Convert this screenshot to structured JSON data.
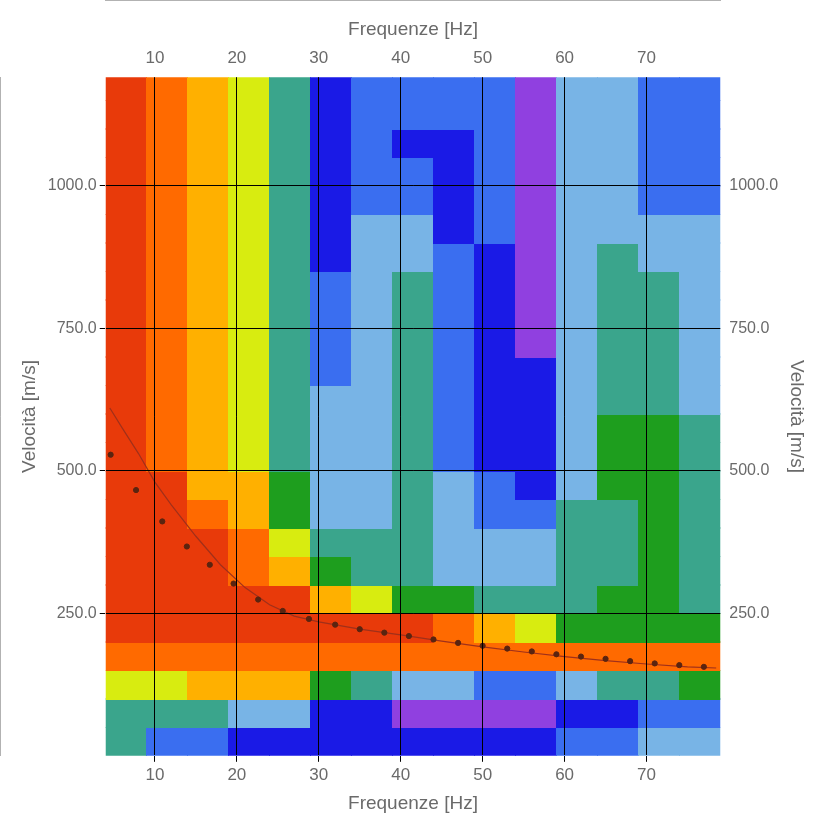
{
  "chart_data": {
    "type": "heatmap",
    "x_label": "Frequenze [Hz]",
    "y_label": "Velocità [m/s]",
    "xlim": [
      4,
      79
    ],
    "xticks": [
      10,
      20,
      30,
      40,
      50,
      60,
      70
    ],
    "ylim": [
      0,
      1190
    ],
    "yticks": [
      {
        "value": 250,
        "label": "250.0"
      },
      {
        "value": 500,
        "label": "500.0"
      },
      {
        "value": 750,
        "label": "750.0"
      },
      {
        "value": 1000,
        "label": "1000.0"
      }
    ],
    "grid": true,
    "heatmap": {
      "x_edges": [
        4,
        9,
        14,
        19,
        24,
        29,
        34,
        39,
        44,
        49,
        54,
        59,
        64,
        69,
        74,
        79
      ],
      "y_edges": [
        0,
        50,
        100,
        150,
        200,
        250,
        300,
        350,
        400,
        450,
        500,
        550,
        600,
        650,
        700,
        750,
        800,
        850,
        900,
        950,
        1000,
        1050,
        1100,
        1150,
        1200
      ],
      "zlim": [
        0,
        1
      ],
      "z": [
        [
          0.5,
          0.3,
          0.25,
          0.2,
          0.2,
          0.2,
          0.2,
          0.2,
          0.2,
          0.2,
          0.2,
          0.25,
          0.3,
          0.35,
          0.35
        ],
        [
          0.5,
          0.5,
          0.45,
          0.4,
          0.35,
          0.2,
          0.15,
          0.1,
          0.1,
          0.05,
          0.05,
          0.15,
          0.2,
          0.25,
          0.3
        ],
        [
          0.7,
          0.7,
          0.75,
          0.8,
          0.75,
          0.6,
          0.5,
          0.4,
          0.35,
          0.3,
          0.25,
          0.35,
          0.45,
          0.5,
          0.55
        ],
        [
          0.9,
          0.9,
          0.9,
          0.9,
          0.9,
          0.9,
          0.9,
          0.9,
          0.85,
          0.9,
          0.9,
          0.9,
          0.9,
          0.9,
          0.9
        ],
        [
          0.95,
          0.95,
          1,
          1,
          1,
          1,
          1,
          0.95,
          0.9,
          0.8,
          0.7,
          0.6,
          0.6,
          0.6,
          0.6
        ],
        [
          0.95,
          0.95,
          1,
          1,
          0.95,
          0.8,
          0.7,
          0.6,
          0.55,
          0.5,
          0.45,
          0.5,
          0.55,
          0.6,
          0.5
        ],
        [
          0.95,
          0.95,
          1,
          0.9,
          0.8,
          0.6,
          0.5,
          0.5,
          0.4,
          0.4,
          0.4,
          0.45,
          0.5,
          0.55,
          0.45
        ],
        [
          0.95,
          0.95,
          0.95,
          0.85,
          0.7,
          0.45,
          0.45,
          0.5,
          0.4,
          0.4,
          0.35,
          0.45,
          0.5,
          0.55,
          0.45
        ],
        [
          0.95,
          0.95,
          0.9,
          0.8,
          0.6,
          0.4,
          0.4,
          0.5,
          0.4,
          0.3,
          0.3,
          0.45,
          0.5,
          0.55,
          0.45
        ],
        [
          0.95,
          0.95,
          0.8,
          0.75,
          0.55,
          0.35,
          0.4,
          0.5,
          0.35,
          0.25,
          0.2,
          0.4,
          0.55,
          0.55,
          0.45
        ],
        [
          0.95,
          0.9,
          0.8,
          0.7,
          0.5,
          0.35,
          0.4,
          0.5,
          0.3,
          0.2,
          0.2,
          0.4,
          0.55,
          0.6,
          0.45
        ],
        [
          0.95,
          0.9,
          0.8,
          0.7,
          0.5,
          0.35,
          0.4,
          0.5,
          0.3,
          0.2,
          0.2,
          0.4,
          0.55,
          0.55,
          0.45
        ],
        [
          0.95,
          0.9,
          0.8,
          0.7,
          0.5,
          0.35,
          0.4,
          0.5,
          0.3,
          0.2,
          0.15,
          0.4,
          0.5,
          0.5,
          0.4
        ],
        [
          0.95,
          0.9,
          0.8,
          0.7,
          0.5,
          0.3,
          0.4,
          0.5,
          0.3,
          0.2,
          0.15,
          0.4,
          0.5,
          0.5,
          0.4
        ],
        [
          0.95,
          0.9,
          0.8,
          0.7,
          0.5,
          0.3,
          0.35,
          0.5,
          0.3,
          0.15,
          0.1,
          0.4,
          0.5,
          0.45,
          0.4
        ],
        [
          0.95,
          0.9,
          0.8,
          0.7,
          0.5,
          0.3,
          0.35,
          0.45,
          0.3,
          0.15,
          0.1,
          0.4,
          0.45,
          0.45,
          0.4
        ],
        [
          0.95,
          0.9,
          0.8,
          0.7,
          0.45,
          0.25,
          0.35,
          0.45,
          0.3,
          0.2,
          0.1,
          0.4,
          0.45,
          0.45,
          0.35
        ],
        [
          0.95,
          0.9,
          0.8,
          0.7,
          0.45,
          0.2,
          0.35,
          0.4,
          0.25,
          0.2,
          0.1,
          0.4,
          0.45,
          0.4,
          0.35
        ],
        [
          0.95,
          0.9,
          0.8,
          0.7,
          0.45,
          0.2,
          0.35,
          0.4,
          0.2,
          0.25,
          0.1,
          0.4,
          0.4,
          0.35,
          0.35
        ],
        [
          0.95,
          0.9,
          0.8,
          0.7,
          0.45,
          0.2,
          0.3,
          0.3,
          0.2,
          0.3,
          0.05,
          0.4,
          0.4,
          0.3,
          0.3
        ],
        [
          0.95,
          0.9,
          0.8,
          0.65,
          0.45,
          0.2,
          0.3,
          0.25,
          0.2,
          0.3,
          0.05,
          0.4,
          0.4,
          0.3,
          0.3
        ],
        [
          0.95,
          0.9,
          0.8,
          0.65,
          0.45,
          0.2,
          0.3,
          0.2,
          0.2,
          0.3,
          0.05,
          0.4,
          0.4,
          0.3,
          0.3
        ],
        [
          0.95,
          0.9,
          0.8,
          0.65,
          0.45,
          0.2,
          0.3,
          0.25,
          0.3,
          0.3,
          0.05,
          0.4,
          0.4,
          0.3,
          0.3
        ],
        [
          0.95,
          0.9,
          0.8,
          0.65,
          0.45,
          0.2,
          0.3,
          0.3,
          0.3,
          0.3,
          0.1,
          0.4,
          0.4,
          0.3,
          0.3
        ]
      ]
    },
    "series": [
      {
        "type": "scatter",
        "marker": "circle",
        "color": "#5a2410",
        "x": [
          4.6,
          7.7,
          10.9,
          13.9,
          16.7,
          19.6,
          22.6,
          25.6,
          28.8,
          32,
          35,
          38,
          41,
          44,
          47,
          50,
          53,
          56,
          59,
          62,
          65,
          68,
          71,
          74,
          77
        ],
        "values": [
          528,
          466,
          411,
          367,
          335,
          302,
          274,
          254,
          240,
          230,
          222,
          216,
          210,
          204,
          198,
          193,
          188,
          183,
          178,
          174,
          170,
          166,
          162,
          159,
          156
        ]
      },
      {
        "type": "line",
        "line_style": "solid",
        "color": "#a0301a",
        "x": [
          4.5,
          6,
          8,
          10,
          12,
          15,
          18,
          21,
          24,
          27,
          30,
          35,
          40,
          45,
          50,
          55,
          60,
          65,
          70,
          75,
          78.5
        ],
        "values": [
          610,
          575,
          530,
          480,
          440,
          385,
          335,
          295,
          265,
          245,
          235,
          222,
          212,
          201,
          191,
          182,
          174,
          167,
          161,
          156,
          154
        ]
      }
    ]
  }
}
